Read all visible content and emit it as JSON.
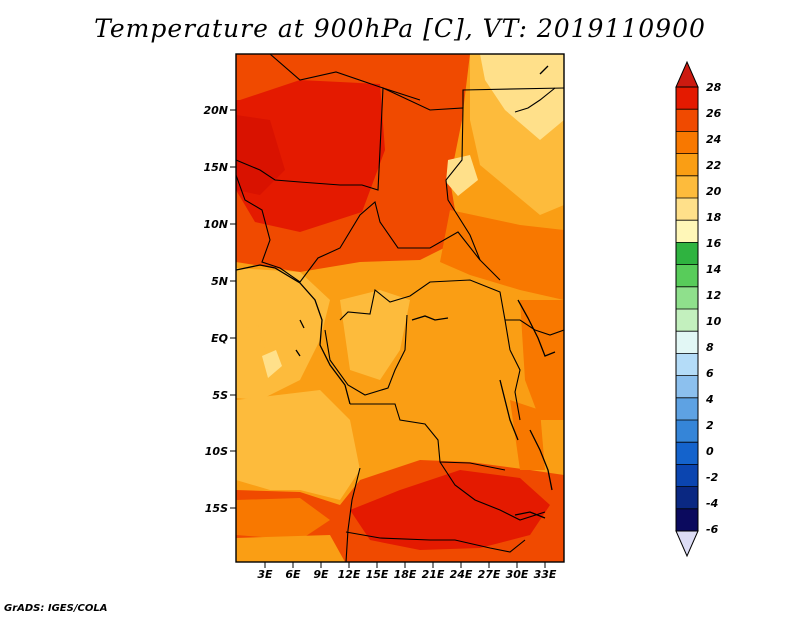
{
  "title": "Temperature at 900hPa [C], VT: 2019110900",
  "credit": "GrADS: IGES/COLA",
  "map": {
    "lat_labels": [
      "20N",
      "15N",
      "10N",
      "5N",
      "EQ",
      "5S",
      "10S",
      "15S"
    ],
    "lon_labels": [
      "3E",
      "6E",
      "9E",
      "12E",
      "15E",
      "18E",
      "21E",
      "24E",
      "27E",
      "30E",
      "33E"
    ]
  },
  "colorbar": {
    "labels": [
      "28",
      "26",
      "24",
      "22",
      "20",
      "18",
      "16",
      "14",
      "12",
      "10",
      "8",
      "6",
      "4",
      "2",
      "0",
      "-2",
      "-4",
      "-6"
    ],
    "colors": [
      "#e41a00",
      "#f04a00",
      "#f87800",
      "#fa9e14",
      "#fdbb3c",
      "#ffe08a",
      "#fff7b8",
      "#2fb340",
      "#58cc5a",
      "#8fe08c",
      "#c3f0be",
      "#e2f7f5",
      "#b4dcf8",
      "#8cc0ee",
      "#5ea2e3",
      "#3585d8",
      "#1463cc",
      "#0b45b0",
      "#0a2882",
      "#0b0a5e"
    ],
    "top_arrow_color": "#cc1a10",
    "bottom_arrow_color": "#dcdcf5"
  }
}
